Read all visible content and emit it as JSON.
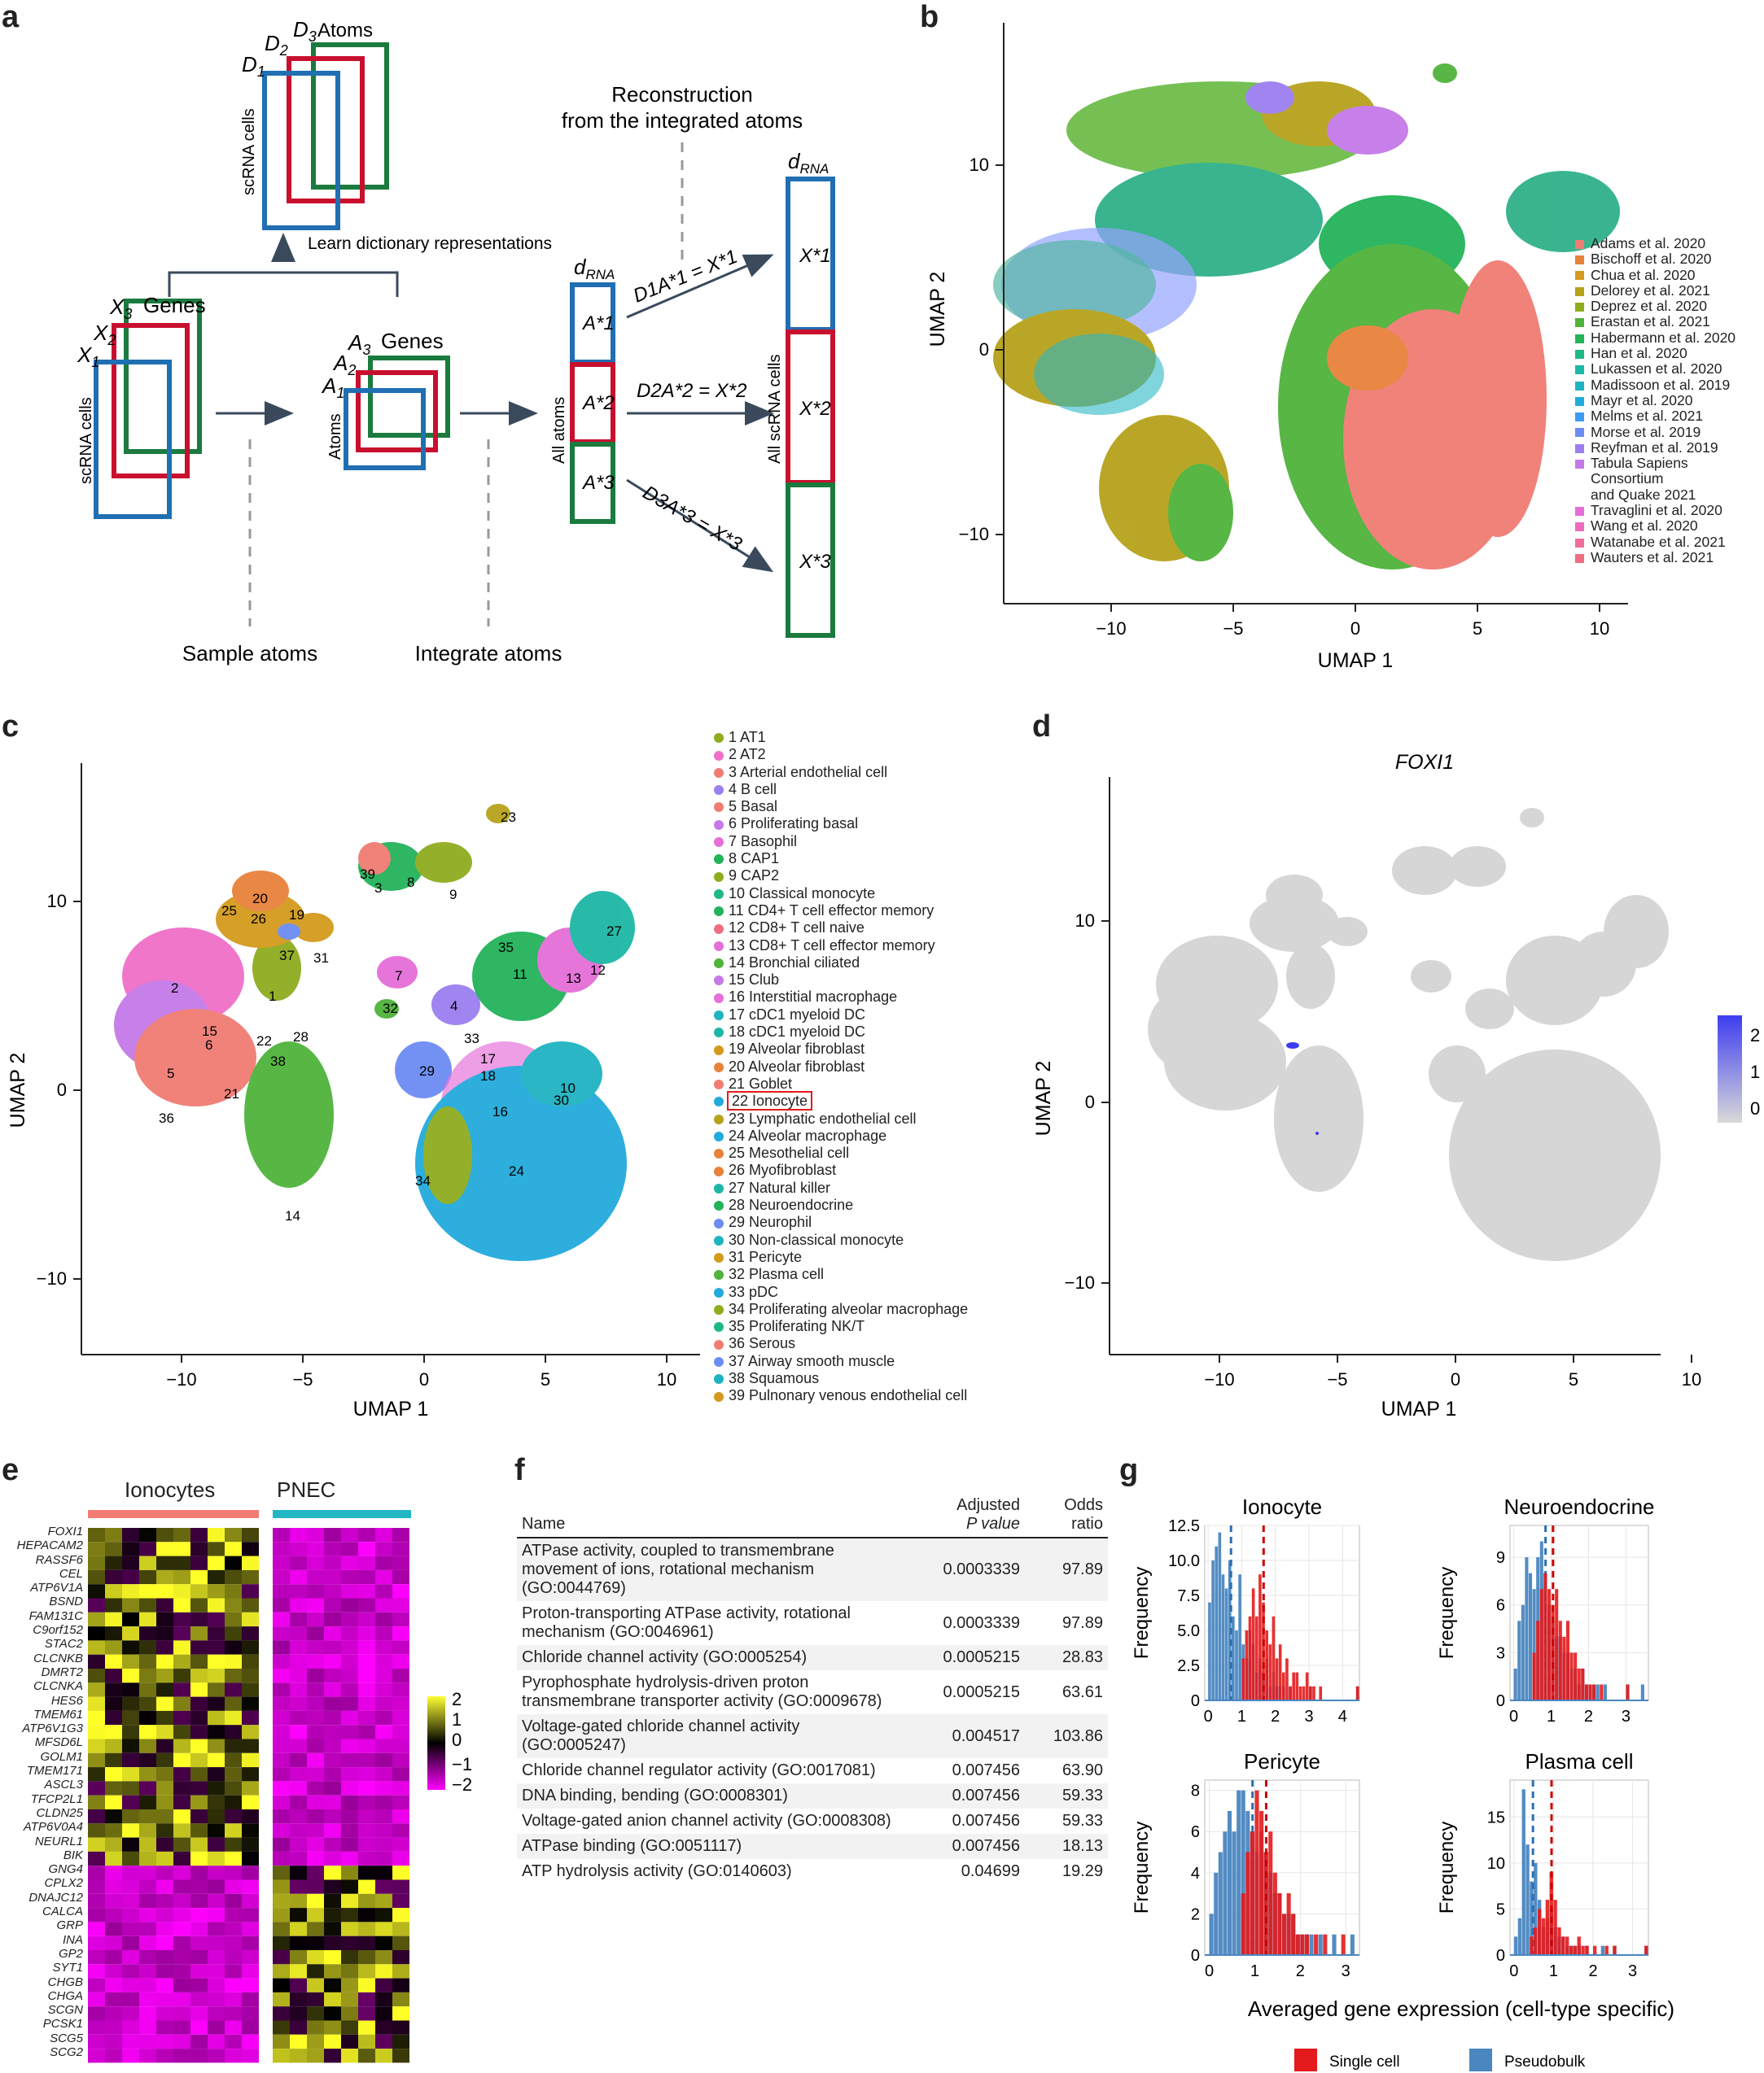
{
  "panels": {
    "a": "a",
    "b": "b",
    "c": "c",
    "d": "d",
    "e": "e",
    "f": "f",
    "g": "g"
  },
  "panel_a": {
    "d3": "D",
    "d3_sub": "3",
    "d2": "D",
    "d2_sub": "2",
    "d1": "D",
    "d1_sub": "1",
    "atoms_label": "Atoms",
    "scrna_cells_top": "scRNA cells",
    "learn_dict": "Learn dictionary representations",
    "x3": "X",
    "x3_sub": "3",
    "x2": "X",
    "x2_sub": "2",
    "x1": "X",
    "x1_sub": "1",
    "genes_x": "Genes",
    "scrna_cells_left": "scRNA cells",
    "a3": "A",
    "a3_sub": "3",
    "a2": "A",
    "a2_sub": "2",
    "a1": "A",
    "a1_sub": "1",
    "genes_a": "Genes",
    "atoms_axis": "Atoms",
    "recon_line1": "Reconstruction",
    "recon_line2": "from the integrated atoms",
    "drna_1": "d",
    "drna_1_sub": "RNA",
    "drna_2": "d",
    "drna_2_sub": "RNA",
    "all_atoms": "All atoms",
    "all_scrna": "All scRNA cells",
    "astar1": "A*1",
    "astar2": "A*2",
    "astar3": "A*3",
    "xstar1": "X*1",
    "xstar2": "X*2",
    "xstar3": "X*3",
    "eq1": "D1A*1 = X*1",
    "eq2": "D2A*2 = X*2",
    "eq3": "D3A*3 = X*3",
    "sample_atoms": "Sample atoms",
    "integrate_atoms": "Integrate atoms"
  },
  "panel_b": {
    "xlabel": "UMAP 1",
    "ylabel": "UMAP 2",
    "xticks": [
      "−10",
      "−5",
      "0",
      "5",
      "10"
    ],
    "yticks": [
      "10",
      "0",
      "−10"
    ],
    "legend": [
      {
        "label": "Adams et al. 2020",
        "color": "#f07c73"
      },
      {
        "label": "Bischoff et al. 2020",
        "color": "#e8823a"
      },
      {
        "label": "Chua et al. 2020",
        "color": "#d39a1d"
      },
      {
        "label": "Delorey et al. 2021",
        "color": "#b7a21b"
      },
      {
        "label": "Deprez et al. 2020",
        "color": "#8fac1f"
      },
      {
        "label": "Erastan et al. 2021",
        "color": "#4fb33a"
      },
      {
        "label": "Habermann et al. 2020",
        "color": "#23b35a"
      },
      {
        "label": "Han et al. 2020",
        "color": "#1fb884"
      },
      {
        "label": "Lukassen et al. 2020",
        "color": "#1db7a5"
      },
      {
        "label": "Madissoon et al. 2019",
        "color": "#1fb3c2"
      },
      {
        "label": "Mayr et al. 2020",
        "color": "#22aadc"
      },
      {
        "label": "Melms et al. 2021",
        "color": "#3c9cf0"
      },
      {
        "label": "Morse et al. 2019",
        "color": "#6c8cf3"
      },
      {
        "label": "Reyfman et al. 2019",
        "color": "#9b7ff1"
      },
      {
        "label": "Tabula Sapiens Consortium and Quake 2021",
        "color": "#c57ae8",
        "lines": [
          "Tabula Sapiens",
          "Consortium",
          "and Quake 2021"
        ]
      },
      {
        "label": "Travaglini et al. 2020",
        "color": "#e56ed9"
      },
      {
        "label": "Wang et al. 2020",
        "color": "#ee6bbd"
      },
      {
        "label": "Watanabe et al. 2021",
        "color": "#f06d9c"
      },
      {
        "label": "Wauters et al. 2021",
        "color": "#ee6d80"
      }
    ]
  },
  "panel_c": {
    "xlabel": "UMAP 1",
    "ylabel": "UMAP 2",
    "xticks": [
      "−10",
      "−5",
      "0",
      "5",
      "10"
    ],
    "yticks": [
      "10",
      "0",
      "−10"
    ],
    "highlight": "22 Ionocyte",
    "legend": [
      {
        "label": "1 AT1",
        "color": "#8fac1f"
      },
      {
        "label": "2 AT2",
        "color": "#f06fc8"
      },
      {
        "label": "3 Arterial endothelial cell",
        "color": "#f07c73"
      },
      {
        "label": "4 B cell",
        "color": "#9b7ff1"
      },
      {
        "label": "5 Basal",
        "color": "#f07c73"
      },
      {
        "label": "6 Proliferating basal",
        "color": "#c57ae8"
      },
      {
        "label": "7 Basophil",
        "color": "#e56ed9"
      },
      {
        "label": "8 CAP1",
        "color": "#23b35a"
      },
      {
        "label": "9 CAP2",
        "color": "#8fac1f"
      },
      {
        "label": "10 Classical monocyte",
        "color": "#1fb884"
      },
      {
        "label": "11 CD4+ T cell effector memory",
        "color": "#23b35a"
      },
      {
        "label": "12 CD8+ T cell naive",
        "color": "#ee6d80"
      },
      {
        "label": "13 CD8+ T cell effector memory",
        "color": "#e56ed9"
      },
      {
        "label": "14 Bronchial ciliated",
        "color": "#4fb33a"
      },
      {
        "label": "15 Club",
        "color": "#c57ae8"
      },
      {
        "label": "16 Interstitial macrophage",
        "color": "#e56ed9"
      },
      {
        "label": "17 cDC1 myeloid DC",
        "color": "#1fb3c2"
      },
      {
        "label": "18 cDC1 myeloid DC",
        "color": "#1db7a5"
      },
      {
        "label": "19 Alveolar fibroblast",
        "color": "#d39a1d"
      },
      {
        "label": "20 Alveolar fibroblast",
        "color": "#e8823a"
      },
      {
        "label": "21 Goblet",
        "color": "#f07c73"
      },
      {
        "label": "22 Ionocyte",
        "color": "#22aadc"
      },
      {
        "label": "23 Lymphatic endothelial cell",
        "color": "#b7a21b"
      },
      {
        "label": "24 Alveolar macrophage",
        "color": "#22aadc"
      },
      {
        "label": "25 Mesothelial cell",
        "color": "#e8823a"
      },
      {
        "label": "26 Myofibroblast",
        "color": "#e8823a"
      },
      {
        "label": "27 Natural killer",
        "color": "#1db7a5"
      },
      {
        "label": "28 Neuroendocrine",
        "color": "#23b35a"
      },
      {
        "label": "29 Neurophil",
        "color": "#6c8cf3"
      },
      {
        "label": "30 Non-classical monocyte",
        "color": "#1fb3c2"
      },
      {
        "label": "31 Pericyte",
        "color": "#d39a1d"
      },
      {
        "label": "32 Plasma cell",
        "color": "#4fb33a"
      },
      {
        "label": "33 pDC",
        "color": "#22aadc"
      },
      {
        "label": "34 Proliferating alveolar macrophage",
        "color": "#8fac1f"
      },
      {
        "label": "35 Proliferating NK/T",
        "color": "#1fb884"
      },
      {
        "label": "36 Serous",
        "color": "#f07c73"
      },
      {
        "label": "37 Airway smooth muscle",
        "color": "#6c8cf3"
      },
      {
        "label": "38 Squamous",
        "color": "#1fb3c2"
      },
      {
        "label": "39 Pulnonary venous endothelial cell",
        "color": "#d39a1d"
      }
    ]
  },
  "panel_d": {
    "title": "FOXI1",
    "xlabel": "UMAP 1",
    "ylabel": "UMAP 2",
    "xticks": [
      "−10",
      "−5",
      "0",
      "5",
      "10"
    ],
    "yticks": [
      "10",
      "0",
      "−10"
    ],
    "colorbar_ticks": [
      "2",
      "1",
      "0"
    ]
  },
  "panel_e": {
    "group1": "Ionocytes",
    "group2": "PNEC",
    "genes": [
      "FOXI1",
      "HEPACAM2",
      "RASSF6",
      "CEL",
      "ATP6V1A",
      "BSND",
      "FAM131C",
      "C9orf152",
      "STAC2",
      "CLCNKB",
      "DMRT2",
      "CLCNKA",
      "HES6",
      "TMEM61",
      "ATP6V1G3",
      "MFSD6L",
      "GOLM1",
      "TMEM171",
      "ASCL3",
      "TFCP2L1",
      "CLDN25",
      "ATP6V0A4",
      "NEURL1",
      "BIK",
      "GNG4",
      "CPLX2",
      "DNAJC12",
      "CALCA",
      "GRP",
      "INA",
      "GP2",
      "SYT1",
      "CHGB",
      "CHGA",
      "SCGN",
      "PCSK1",
      "SCG5",
      "SCG2"
    ],
    "colorbar_ticks": [
      "2",
      "1",
      "0",
      "−1",
      "−2"
    ]
  },
  "panel_f": {
    "headers": {
      "name": "Name",
      "pval_1": "Adjusted",
      "pval_2": "P value",
      "odds_1": "Odds",
      "odds_2": "ratio"
    },
    "rows": [
      {
        "name": "ATPase activity, coupled to transmembrane movement of ions, rotational mechanism (GO:0044769)",
        "pval": "0.0003339",
        "odds": "97.89"
      },
      {
        "name": "Proton-transporting ATPase activity, rotational mechanism (GO:0046961)",
        "pval": "0.0003339",
        "odds": "97.89"
      },
      {
        "name": "Chloride channel activity (GO:0005254)",
        "pval": "0.0005215",
        "odds": "28.83"
      },
      {
        "name": "Pyrophosphate hydrolysis-driven proton transmembrane transporter activity (GO:0009678)",
        "pval": "0.0005215",
        "odds": "63.61"
      },
      {
        "name": "Voltage-gated chloride channel activity (GO:0005247)",
        "pval": "0.004517",
        "odds": "103.86"
      },
      {
        "name": "Chloride channel regulator activity (GO:0017081)",
        "pval": "0.007456",
        "odds": "63.90"
      },
      {
        "name": "DNA binding, bending (GO:0008301)",
        "pval": "0.007456",
        "odds": "59.33"
      },
      {
        "name": "Voltage-gated anion channel activity (GO:0008308)",
        "pval": "0.007456",
        "odds": "59.33"
      },
      {
        "name": "ATPase binding (GO:0051117)",
        "pval": "0.007456",
        "odds": "18.13"
      },
      {
        "name": "ATP hydrolysis activity (GO:0140603)",
        "pval": "0.04699",
        "odds": "19.29"
      }
    ]
  },
  "panel_g": {
    "xlabel": "Averaged gene expression (cell-type specific)",
    "ylabel": "Frequency",
    "legend": [
      {
        "label": "Single cell",
        "color": "#e41a1c"
      },
      {
        "label": "Pseudobulk",
        "color": "#4a86c0"
      }
    ]
  },
  "chart_data": [
    {
      "type": "histogram",
      "title": "Ionocyte",
      "xlabel": "Averaged gene expression (cell-type specific)",
      "ylabel": "Frequency",
      "xlim": [
        -0.1,
        4.5
      ],
      "ylim": [
        0,
        12.5
      ],
      "xticks": [
        0,
        1,
        2,
        3,
        4
      ],
      "yticks": [
        0,
        2.5,
        5.0,
        7.5,
        10.0,
        12.5
      ],
      "ytick_labels": [
        "0",
        "2.5",
        "5.0",
        "7.5",
        "10.0",
        "12.5"
      ],
      "series": [
        {
          "name": "Pseudobulk",
          "bin_width": 0.1,
          "bin_start": 0.0,
          "values": [
            7,
            10,
            11,
            12,
            9,
            8,
            10,
            6,
            5,
            9,
            4,
            3,
            5,
            4,
            2,
            3,
            2,
            3,
            1,
            2,
            1,
            1,
            1,
            0,
            1,
            0,
            0,
            0,
            0,
            0,
            1,
            0,
            0,
            0,
            0,
            0,
            0,
            0,
            0,
            0,
            0,
            0,
            0,
            0,
            1
          ],
          "mean": 0.68
        },
        {
          "name": "Single cell",
          "bin_width": 0.1,
          "bin_start": 1.0,
          "values": [
            3,
            5,
            6,
            8,
            6,
            9,
            7,
            5,
            4,
            6,
            3,
            4,
            2,
            3,
            1,
            2,
            2,
            1,
            1,
            2,
            1,
            1,
            0,
            1,
            0,
            0,
            0,
            0,
            0,
            0,
            0,
            0,
            0,
            0,
            1
          ],
          "mean": 1.65
        }
      ]
    },
    {
      "type": "histogram",
      "title": "Neuroendocrine",
      "xlabel": "Averaged gene expression (cell-type specific)",
      "ylabel": "Frequency",
      "xlim": [
        -0.1,
        3.6
      ],
      "ylim": [
        0,
        11
      ],
      "xticks": [
        0,
        1,
        2,
        3
      ],
      "yticks": [
        0,
        3,
        6,
        9
      ],
      "ytick_labels": [
        "0",
        "3",
        "6",
        "9"
      ],
      "series": [
        {
          "name": "Pseudobulk",
          "bin_width": 0.1,
          "bin_start": 0.0,
          "values": [
            2,
            5,
            6,
            9,
            8,
            7,
            9,
            10,
            8,
            6,
            5,
            4,
            4,
            3,
            3,
            2,
            2,
            1,
            2,
            1,
            1,
            1,
            1,
            0,
            1,
            0,
            0,
            0,
            0,
            0,
            1,
            0,
            0,
            0,
            1
          ],
          "mean": 0.85
        },
        {
          "name": "Single cell",
          "bin_width": 0.1,
          "bin_start": 0.5,
          "values": [
            3,
            5,
            7,
            8,
            7,
            6,
            7,
            5,
            4,
            5,
            3,
            3,
            2,
            2,
            1,
            1,
            1,
            0,
            1,
            0,
            0,
            0,
            0,
            0,
            0,
            1
          ],
          "mean": 1.05
        }
      ]
    },
    {
      "type": "histogram",
      "title": "Pericyte",
      "xlabel": "Averaged gene expression (cell-type specific)",
      "ylabel": "Frequency",
      "xlim": [
        -0.1,
        3.3
      ],
      "ylim": [
        0,
        8.5
      ],
      "xticks": [
        0,
        1,
        2,
        3
      ],
      "yticks": [
        0,
        2,
        4,
        6,
        8
      ],
      "ytick_labels": [
        "0",
        "2",
        "4",
        "6",
        "8"
      ],
      "series": [
        {
          "name": "Pseudobulk",
          "bin_width": 0.1,
          "bin_start": 0.0,
          "values": [
            2,
            4,
            5,
            6,
            7,
            6,
            8,
            8,
            7,
            6,
            5,
            6,
            5,
            4,
            3,
            3,
            2,
            2,
            2,
            1,
            1,
            1,
            1,
            0,
            1,
            0,
            0,
            1,
            0,
            0,
            0,
            1
          ],
          "mean": 0.95
        },
        {
          "name": "Single cell",
          "bin_width": 0.1,
          "bin_start": 0.7,
          "values": [
            3,
            5,
            6,
            8,
            7,
            5,
            6,
            4,
            3,
            2,
            3,
            2,
            1,
            1,
            1,
            0,
            1,
            0,
            1,
            0,
            0,
            0,
            1
          ],
          "mean": 1.25
        }
      ]
    },
    {
      "type": "histogram",
      "title": "Plasma cell",
      "xlabel": "Averaged gene expression (cell-type specific)",
      "ylabel": "Frequency",
      "xlim": [
        -0.1,
        3.4
      ],
      "ylim": [
        0,
        19
      ],
      "xticks": [
        0,
        1,
        2,
        3
      ],
      "yticks": [
        0,
        5,
        10,
        15
      ],
      "ytick_labels": [
        "0",
        "5",
        "10",
        "15"
      ],
      "series": [
        {
          "name": "Pseudobulk",
          "bin_width": 0.1,
          "bin_start": 0.0,
          "values": [
            2,
            4,
            18,
            12,
            8,
            10,
            6,
            3,
            4,
            5,
            3,
            2,
            2,
            1,
            1,
            1,
            1,
            0,
            1,
            0,
            0,
            0,
            1,
            0,
            0,
            1,
            0,
            0,
            0,
            0,
            0,
            0,
            0,
            1
          ],
          "mean": 0.48
        },
        {
          "name": "Single cell",
          "bin_width": 0.1,
          "bin_start": 0.4,
          "values": [
            2,
            3,
            5,
            4,
            6,
            9,
            6,
            3,
            2,
            2,
            1,
            1,
            2,
            1,
            1,
            0,
            1,
            0,
            0,
            1,
            0,
            1,
            0,
            0,
            0,
            0,
            0,
            0,
            0,
            1
          ],
          "mean": 0.95
        }
      ]
    }
  ]
}
